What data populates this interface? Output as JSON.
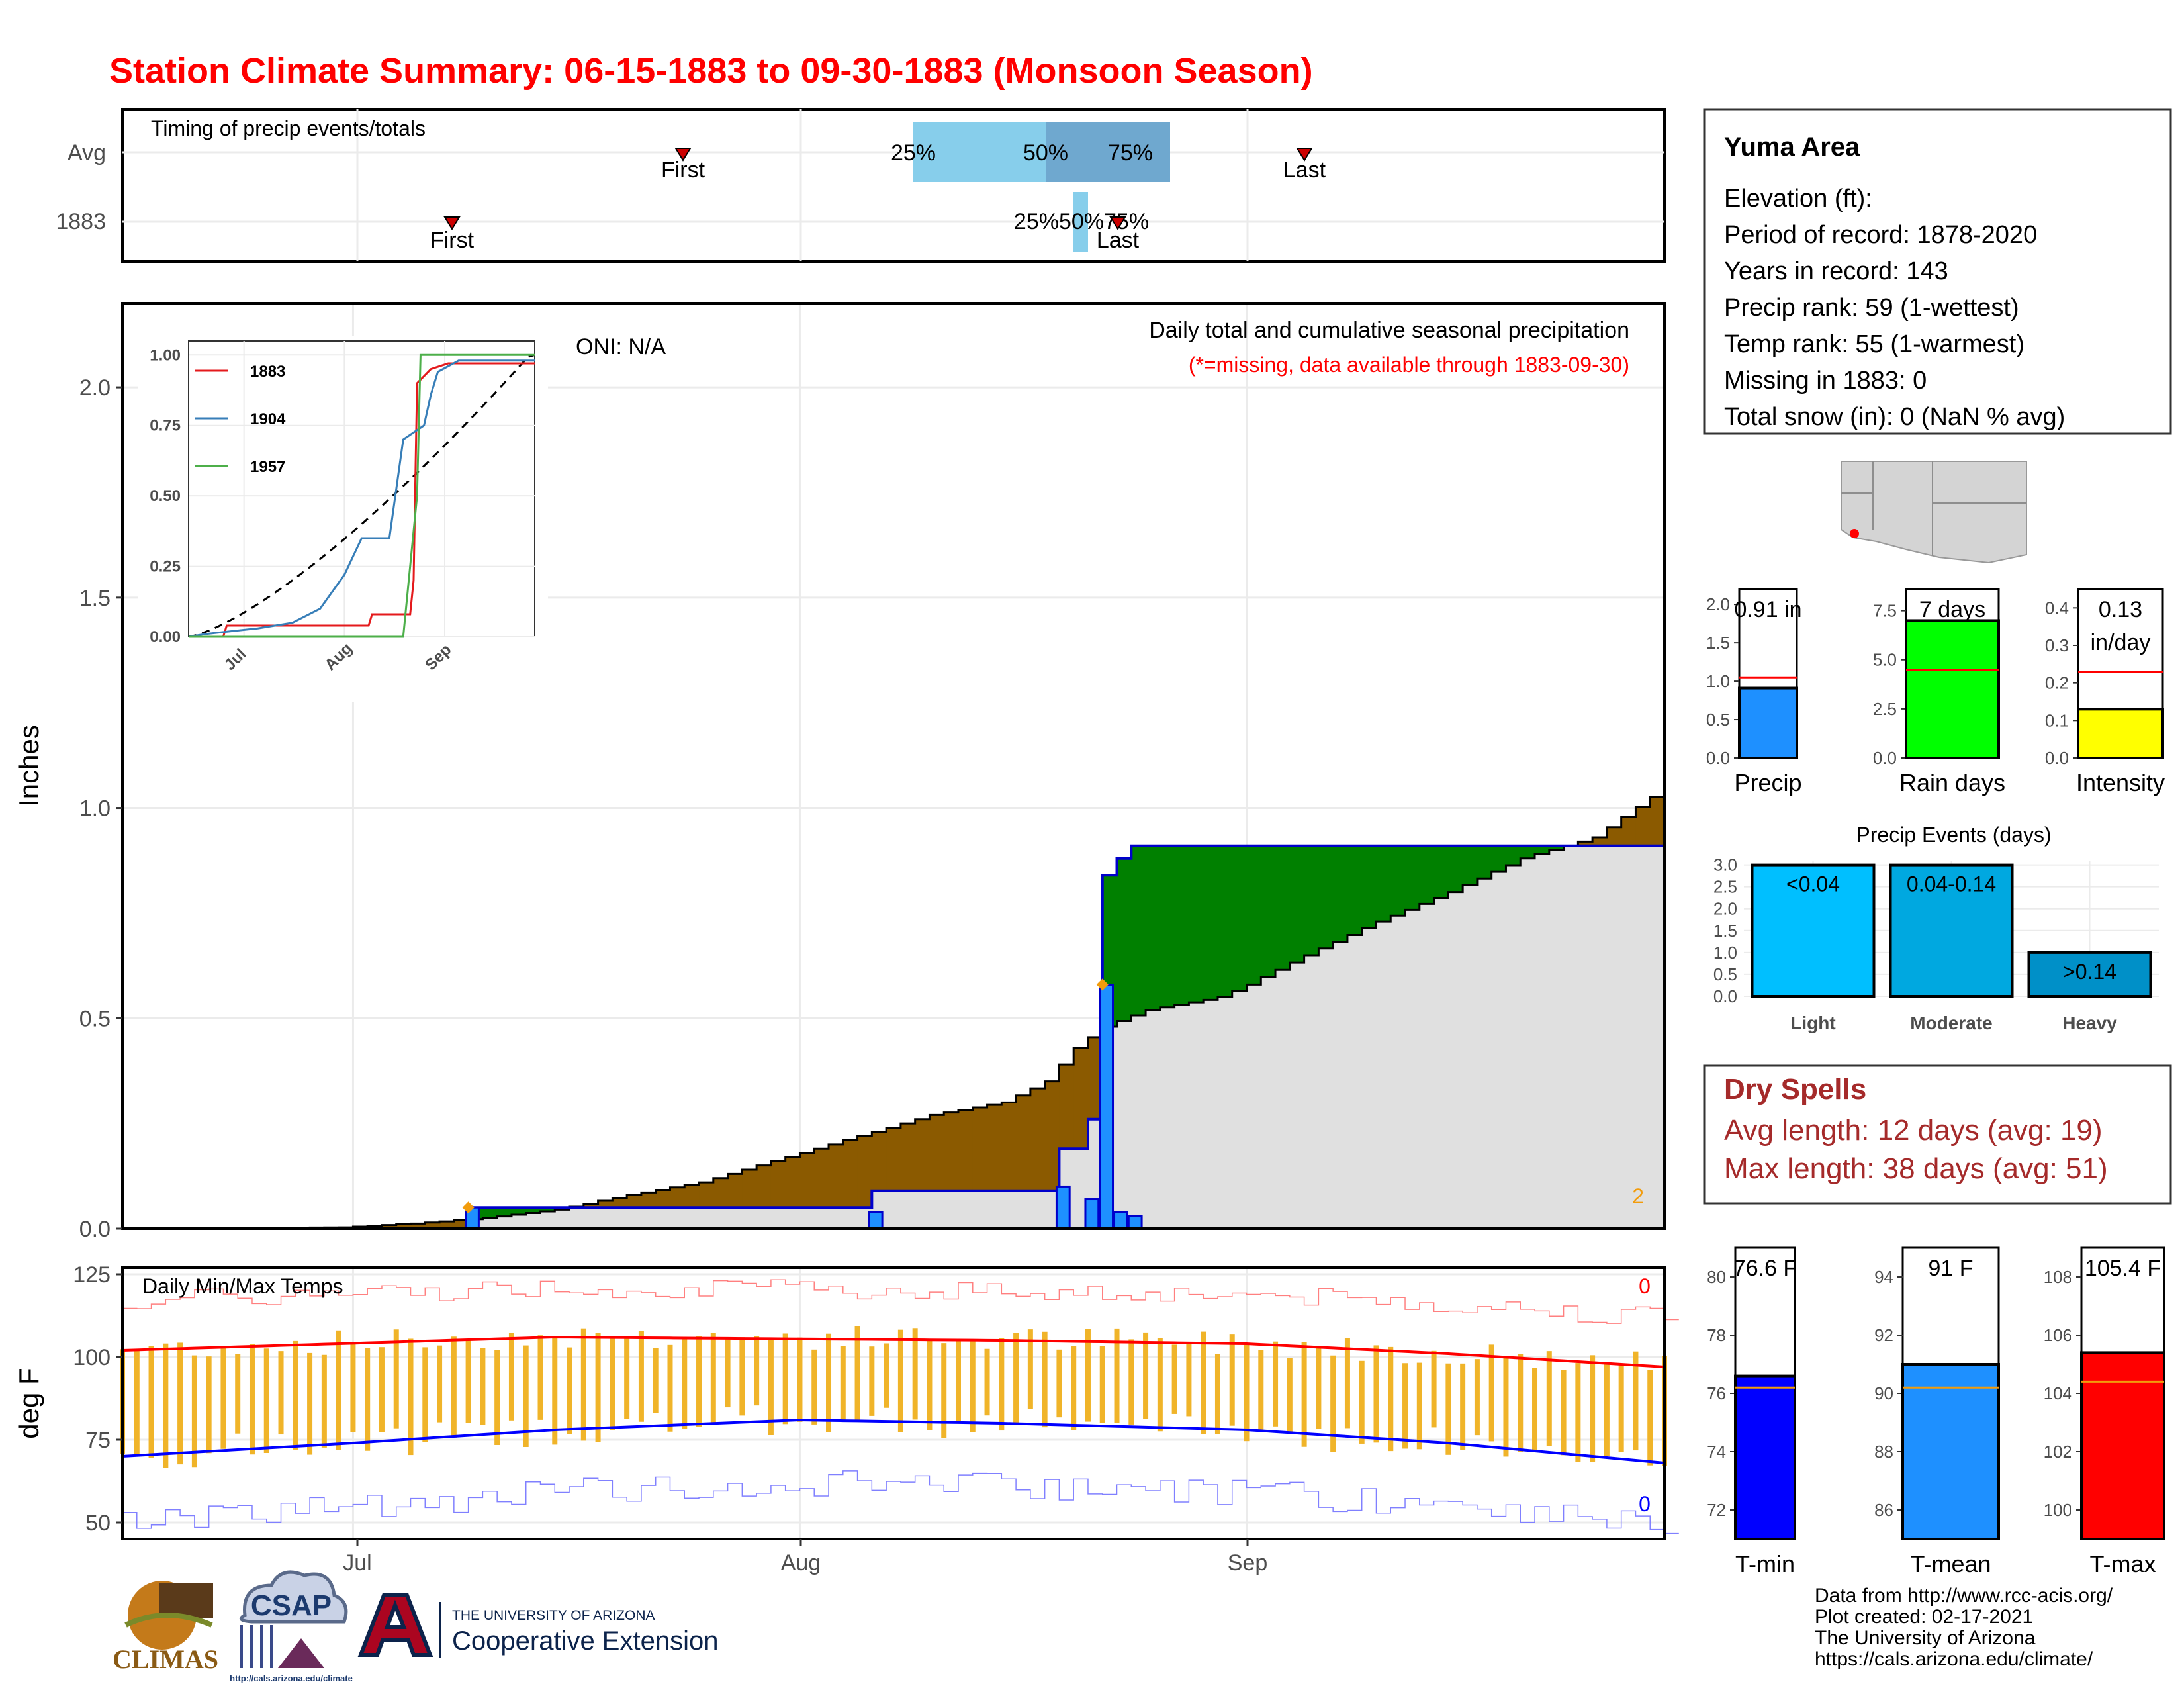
{
  "title": "Station Climate Summary: 06-15-1883 to 09-30-1883 (Monsoon Season)",
  "colors": {
    "title": "#ff0000",
    "cumulative_avg": "#8b5a00",
    "above_avg": "#008000",
    "daily_bar": "#1e90ff",
    "avg_line_fill": "#e0e0e0",
    "tmax": "#ff0000",
    "tmin": "#0000ff",
    "daily_temp_bar": "#f0b429",
    "intensity": "#ffff00",
    "rain_days": "#00ff00",
    "dry_spells": "#a52a2a"
  },
  "timing": {
    "label": "Timing of precip events/totals",
    "rows": [
      "Avg",
      "1883"
    ],
    "avg": {
      "first_label": "First",
      "last_label": "Last",
      "q25": "25%",
      "q50": "50%",
      "q75": "75%"
    },
    "y1883": {
      "first_label": "First",
      "last_label": "Last",
      "q_label": "25%50%75%"
    }
  },
  "main": {
    "oni": "ONI: N/A",
    "subtitle": "Daily total and cumulative seasonal precipitation",
    "missing_note": "(*=missing, data available through 1883-09-30)",
    "ylabel": "Inches",
    "yticks": [
      "0.0",
      "0.5",
      "1.0",
      "1.5",
      "2.0"
    ],
    "corner_count": "2"
  },
  "temps": {
    "label": "Daily Min/Max Temps",
    "ylabel": "deg F",
    "yticks": [
      "50",
      "75",
      "100",
      "125"
    ],
    "max_count": "0",
    "min_count": "0",
    "xticks": [
      "Jul",
      "Aug",
      "Sep"
    ]
  },
  "info": {
    "station": "Yuma Area",
    "lines": [
      "Elevation (ft):",
      "Period of record: 1878-2020",
      "Years in record: 143",
      "Precip rank: 59 (1-wettest)",
      "Temp rank: 55 (1-warmest)",
      "Missing in 1883: 0",
      "Total snow (in): 0 (NaN % avg)"
    ]
  },
  "mini": {
    "precip": {
      "value_label": "0.91 in",
      "label": "Precip",
      "yticks": [
        "0.0",
        "0.5",
        "1.0",
        "1.5",
        "2.0"
      ]
    },
    "rain_days": {
      "value_label": "7 days",
      "label": "Rain days",
      "yticks": [
        "0.0",
        "2.5",
        "5.0",
        "7.5"
      ]
    },
    "intensity": {
      "value_label": "0.13",
      "value_unit": "in/day",
      "label": "Intensity",
      "yticks": [
        "0.0",
        "0.1",
        "0.2",
        "0.3",
        "0.4"
      ]
    }
  },
  "events": {
    "title": "Precip Events (days)",
    "yticks": [
      "0.0",
      "0.5",
      "1.0",
      "1.5",
      "2.0",
      "2.5",
      "3.0"
    ],
    "categories": [
      "Light",
      "Moderate",
      "Heavy"
    ],
    "bar_labels": [
      "<0.04",
      "0.04-0.14",
      ">0.14"
    ]
  },
  "dry_spells": {
    "title": "Dry Spells",
    "avg": "Avg length: 12 days (avg: 19)",
    "max": "Max length: 38 days (avg: 51)"
  },
  "temp_bars": {
    "tmin": {
      "value_label": "76.6 F",
      "label": "T-min",
      "yticks": [
        "72",
        "74",
        "76",
        "78",
        "80"
      ]
    },
    "tmean": {
      "value_label": "91 F",
      "label": "T-mean",
      "yticks": [
        "86",
        "88",
        "90",
        "92",
        "94"
      ]
    },
    "tmax": {
      "value_label": "105.4 F",
      "label": "T-max",
      "yticks": [
        "100",
        "102",
        "104",
        "106",
        "108"
      ]
    }
  },
  "inset": {
    "legend": [
      "1883",
      "1904",
      "1957"
    ],
    "legend_colors": [
      "#e41a1c",
      "#377eb8",
      "#4daf4a"
    ],
    "yticks": [
      "0.00",
      "0.25",
      "0.50",
      "0.75",
      "1.00"
    ],
    "xticks": [
      "Jul",
      "Aug",
      "Sep"
    ]
  },
  "logos": {
    "climas": "CLIMAS",
    "csap": "CSAP",
    "csap_url": "http://cals.arizona.edu/climate",
    "ua_line1": "THE UNIVERSITY OF ARIZONA",
    "ua_line2": "Cooperative Extension"
  },
  "credits": [
    "Data from http://www.rcc-acis.org/",
    "Plot created: 02-17-2021",
    "The University of Arizona",
    "https://cals.arizona.edu/climate/"
  ],
  "chart_data": [
    {
      "type": "area",
      "name": "Daily total and cumulative seasonal precipitation",
      "x_range": [
        "1883-06-15",
        "1883-09-30"
      ],
      "ylim": [
        0,
        2.2
      ],
      "series": [
        {
          "name": "cumulative average",
          "points": [
            [
              "06-15",
              0
            ],
            [
              "06-30",
              0.003
            ],
            [
              "07-05",
              0.012
            ],
            [
              "07-10",
              0.025
            ],
            [
              "07-15",
              0.045
            ],
            [
              "07-20",
              0.08
            ],
            [
              "07-25",
              0.11
            ],
            [
              "07-30",
              0.16
            ],
            [
              "08-05",
              0.22
            ],
            [
              "08-10",
              0.27
            ],
            [
              "08-15",
              0.3
            ],
            [
              "08-18",
              0.35
            ],
            [
              "08-20",
              0.43
            ],
            [
              "08-22",
              0.48
            ],
            [
              "08-25",
              0.52
            ],
            [
              "08-30",
              0.55
            ],
            [
              "09-01",
              0.58
            ],
            [
              "09-05",
              0.65
            ],
            [
              "09-10",
              0.73
            ],
            [
              "09-15",
              0.8
            ],
            [
              "09-20",
              0.88
            ],
            [
              "09-25",
              0.93
            ],
            [
              "09-30",
              1.05
            ]
          ]
        },
        {
          "name": "1883 cumulative",
          "points": [
            [
              "06-15",
              0
            ],
            [
              "07-08",
              0
            ],
            [
              "07-09",
              0.05
            ],
            [
              "08-05",
              0.05
            ],
            [
              "08-06",
              0.09
            ],
            [
              "08-18",
              0.09
            ],
            [
              "08-19",
              0.19
            ],
            [
              "08-21",
              0.26
            ],
            [
              "08-22",
              0.84
            ],
            [
              "08-23",
              0.88
            ],
            [
              "08-24",
              0.91
            ],
            [
              "09-30",
              0.91
            ]
          ]
        },
        {
          "name": "1883 daily",
          "points": [
            [
              "07-09",
              0.05
            ],
            [
              "08-06",
              0.04
            ],
            [
              "08-19",
              0.1
            ],
            [
              "08-21",
              0.07
            ],
            [
              "08-22",
              0.58
            ],
            [
              "08-23",
              0.04
            ],
            [
              "08-24",
              0.03
            ]
          ]
        }
      ]
    },
    {
      "type": "line",
      "name": "Daily Min/Max Temps",
      "ylim": [
        45,
        127
      ],
      "series": [
        {
          "name": "avg max",
          "points": [
            [
              "06-15",
              102
            ],
            [
              "07-15",
              106
            ],
            [
              "08-15",
              105
            ],
            [
              "09-01",
              104
            ],
            [
              "09-15",
              101
            ],
            [
              "09-30",
              97
            ]
          ]
        },
        {
          "name": "avg min",
          "points": [
            [
              "06-15",
              70
            ],
            [
              "07-01",
              74
            ],
            [
              "07-15",
              78
            ],
            [
              "08-01",
              81
            ],
            [
              "08-15",
              80
            ],
            [
              "09-01",
              78
            ],
            [
              "09-15",
              74
            ],
            [
              "09-30",
              68
            ]
          ]
        }
      ]
    },
    {
      "type": "line",
      "name": "inset cumulative fraction",
      "ylim": [
        0,
        1.05
      ],
      "series": [
        {
          "name": "1883",
          "values": [
            0.0,
            0.05,
            0.1,
            0.9,
            1.0
          ]
        },
        {
          "name": "1904",
          "values": [
            0.0,
            0.2,
            0.45,
            0.75,
            1.0
          ]
        },
        {
          "name": "1957",
          "values": [
            0.0,
            0.0,
            0.1,
            1.0,
            1.0
          ]
        }
      ]
    },
    {
      "type": "bar",
      "name": "Precip Events (days)",
      "categories": [
        "Light",
        "Moderate",
        "Heavy"
      ],
      "values": [
        3,
        3,
        1
      ],
      "ylim": [
        0,
        3.1
      ]
    },
    {
      "type": "bar",
      "name": "season summary",
      "categories": [
        "Precip",
        "Rain days",
        "Intensity"
      ],
      "values": [
        0.91,
        7,
        0.13
      ],
      "averages": [
        1.05,
        4.5,
        0.23
      ]
    },
    {
      "type": "bar",
      "name": "temperature summary",
      "categories": [
        "T-min",
        "T-mean",
        "T-max"
      ],
      "values": [
        76.6,
        91,
        105.4
      ],
      "averages": [
        76.2,
        90.2,
        104.4
      ]
    }
  ]
}
